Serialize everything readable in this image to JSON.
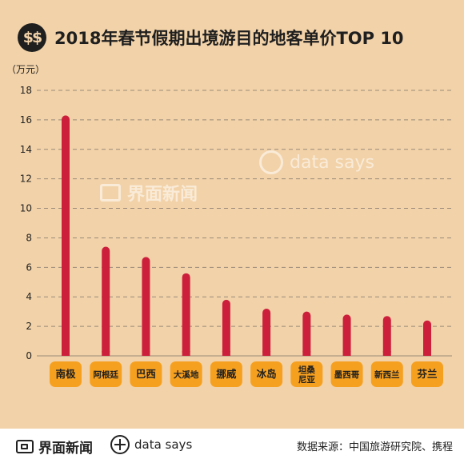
{
  "title": {
    "icon": "dollar-coin-icon",
    "icon_glyph": "$$",
    "text": "2018年春节假期出境游目的地客单价TOP 10"
  },
  "unit_label": "（万元）",
  "watermarks": {
    "jiemian": "界面新闻",
    "datasays": "data says"
  },
  "footer": {
    "brand": "界面新闻",
    "datasays": "data says",
    "source": "数据来源：中国旅游研究院、携程"
  },
  "colors": {
    "background": "#f2d2a8",
    "bar": "#cc1f3c",
    "label_bg": "#f6a020",
    "grid": "#9a8a7a"
  },
  "chart_data": {
    "type": "bar",
    "title": "2018年春节假期出境游目的地客单价TOP 10",
    "ylabel": "（万元）",
    "categories": [
      "南极",
      "阿根廷",
      "巴西",
      "大溪地",
      "挪威",
      "冰岛",
      "坦桑尼亚",
      "墨西哥",
      "新西兰",
      "芬兰"
    ],
    "category_display": [
      [
        "南极"
      ],
      [
        "阿根廷"
      ],
      [
        "巴西"
      ],
      [
        "大溪地"
      ],
      [
        "挪威"
      ],
      [
        "冰岛"
      ],
      [
        "坦桑",
        "尼亚"
      ],
      [
        "墨西哥"
      ],
      [
        "新西兰"
      ],
      [
        "芬兰"
      ]
    ],
    "values": [
      16.3,
      7.4,
      6.7,
      5.6,
      3.8,
      3.2,
      3.0,
      2.8,
      2.7,
      2.4
    ],
    "ylim": [
      0,
      18
    ],
    "yticks": [
      0,
      2,
      4,
      6,
      8,
      10,
      12,
      14,
      16,
      18
    ],
    "grid": true,
    "grid_style": "dashed"
  }
}
